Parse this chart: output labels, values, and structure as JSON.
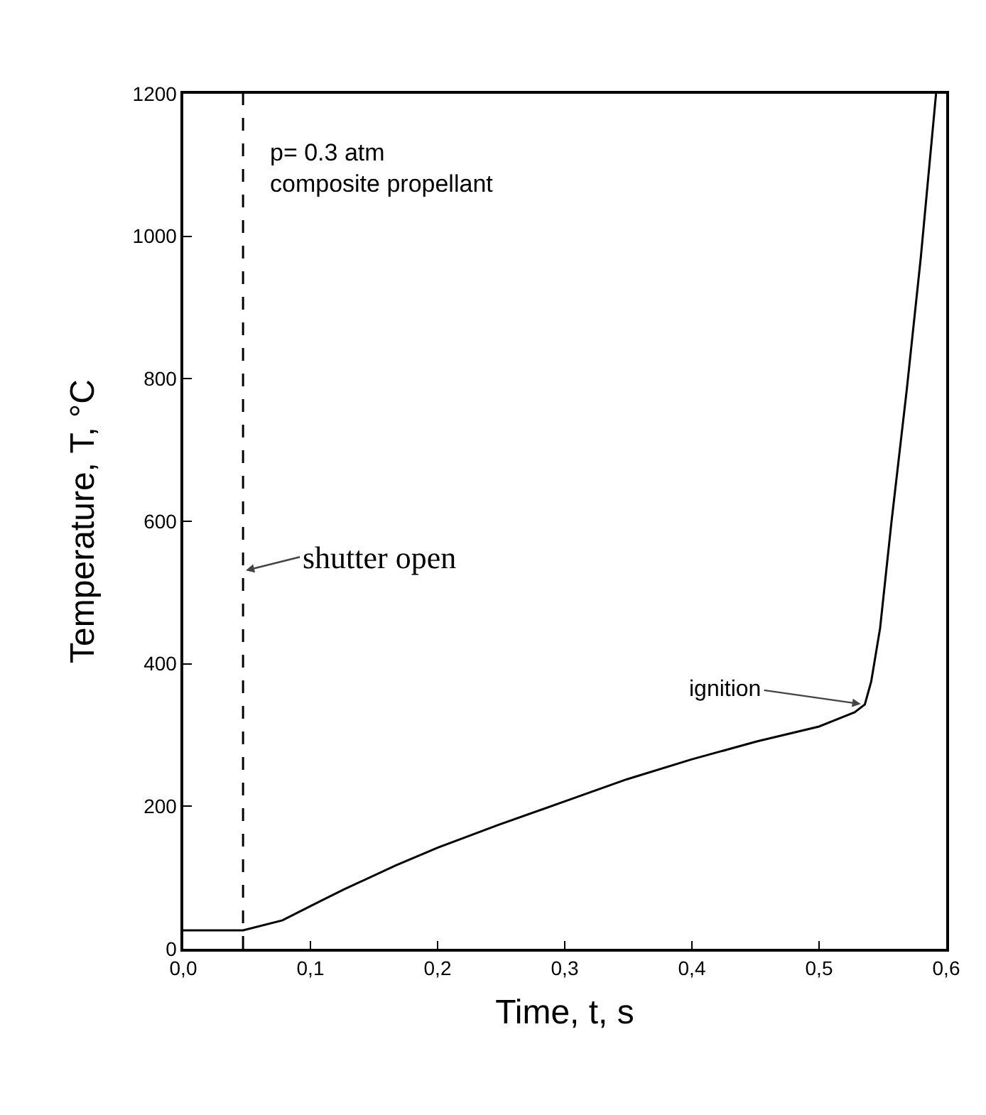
{
  "chart_data": {
    "type": "line",
    "xlabel": "Time, t, s",
    "ylabel": "Temperature, T, °C",
    "x": [
      0,
      0.047,
      0.078,
      0.1,
      0.126,
      0.167,
      0.2,
      0.248,
      0.3,
      0.349,
      0.4,
      0.451,
      0.5,
      0.528,
      0.536,
      0.541,
      0.548,
      0.557,
      0.569,
      0.58,
      0.592
    ],
    "series": [
      {
        "color": "#000000",
        "values": [
          26,
          26,
          40,
          60,
          83,
          117,
          142,
          174,
          207,
          238,
          266,
          291,
          312,
          332,
          343,
          375,
          450,
          600,
          785,
          970,
          1200
        ]
      }
    ],
    "xlim": [
      0,
      0.6
    ],
    "ylim": [
      0,
      1200
    ],
    "xticks": [
      {
        "value": 0,
        "label": "0,0"
      },
      {
        "value": 0.1,
        "label": "0,1"
      },
      {
        "value": 0.2,
        "label": "0,2"
      },
      {
        "value": 0.3,
        "label": "0,3"
      },
      {
        "value": 0.4,
        "label": "0,4"
      },
      {
        "value": 0.5,
        "label": "0,5"
      },
      {
        "value": 0.6,
        "label": "0,6"
      }
    ],
    "yticks": [
      0,
      200,
      400,
      600,
      800,
      1000,
      1200
    ],
    "ref_lines": [
      {
        "axis": "x",
        "value": 0.047,
        "color": "#000000",
        "line_style": "dashed"
      }
    ],
    "annotations": [
      "p= 0.3 atm\ncomposite propellant",
      {
        "text": "shutter open",
        "x": 0.047,
        "y": 530
      },
      {
        "text": "ignition",
        "x": 0.535,
        "y": 343
      }
    ],
    "grid": false,
    "marker": "none",
    "line_style": "solid"
  }
}
